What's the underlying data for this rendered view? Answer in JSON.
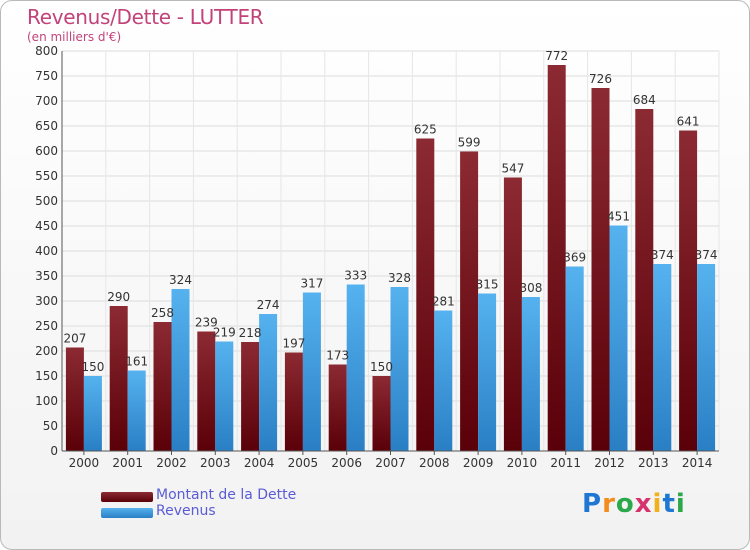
{
  "header": {
    "title": "Revenus/Dette - LUTTER",
    "subtitle": "(en milliers d'€)"
  },
  "chart_data": {
    "type": "bar",
    "categories": [
      "2000",
      "2001",
      "2002",
      "2003",
      "2004",
      "2005",
      "2006",
      "2007",
      "2008",
      "2009",
      "2010",
      "2011",
      "2012",
      "2013",
      "2014"
    ],
    "series": [
      {
        "name": "Montant de la Dette",
        "color": "#7a1a22",
        "values": [
          207,
          290,
          258,
          239,
          218,
          197,
          173,
          150,
          625,
          599,
          547,
          772,
          726,
          684,
          641
        ]
      },
      {
        "name": "Revenus",
        "color": "#3d9fe3",
        "values": [
          150,
          161,
          324,
          219,
          274,
          317,
          333,
          328,
          281,
          315,
          308,
          369,
          451,
          374,
          374
        ]
      }
    ],
    "ylim": [
      0,
      800
    ],
    "yticks": [
      0,
      50,
      100,
      150,
      200,
      250,
      300,
      350,
      400,
      450,
      500,
      550,
      600,
      650,
      700,
      750,
      800
    ],
    "grid": true,
    "legend_position": "bottom-left"
  },
  "legend": {
    "items": [
      {
        "label": "Montant de la Dette",
        "color": "#7a1a22"
      },
      {
        "label": "Revenus",
        "color": "#3d9fe3"
      }
    ]
  },
  "logo": {
    "letters": [
      "P",
      "r",
      "o",
      "x",
      "i",
      "t",
      "i"
    ],
    "colors": [
      "#1f77d4",
      "#f28c1b",
      "#2aa84a",
      "#d6336c",
      "#f2b01b",
      "#1f77d4",
      "#2aa84a"
    ]
  }
}
